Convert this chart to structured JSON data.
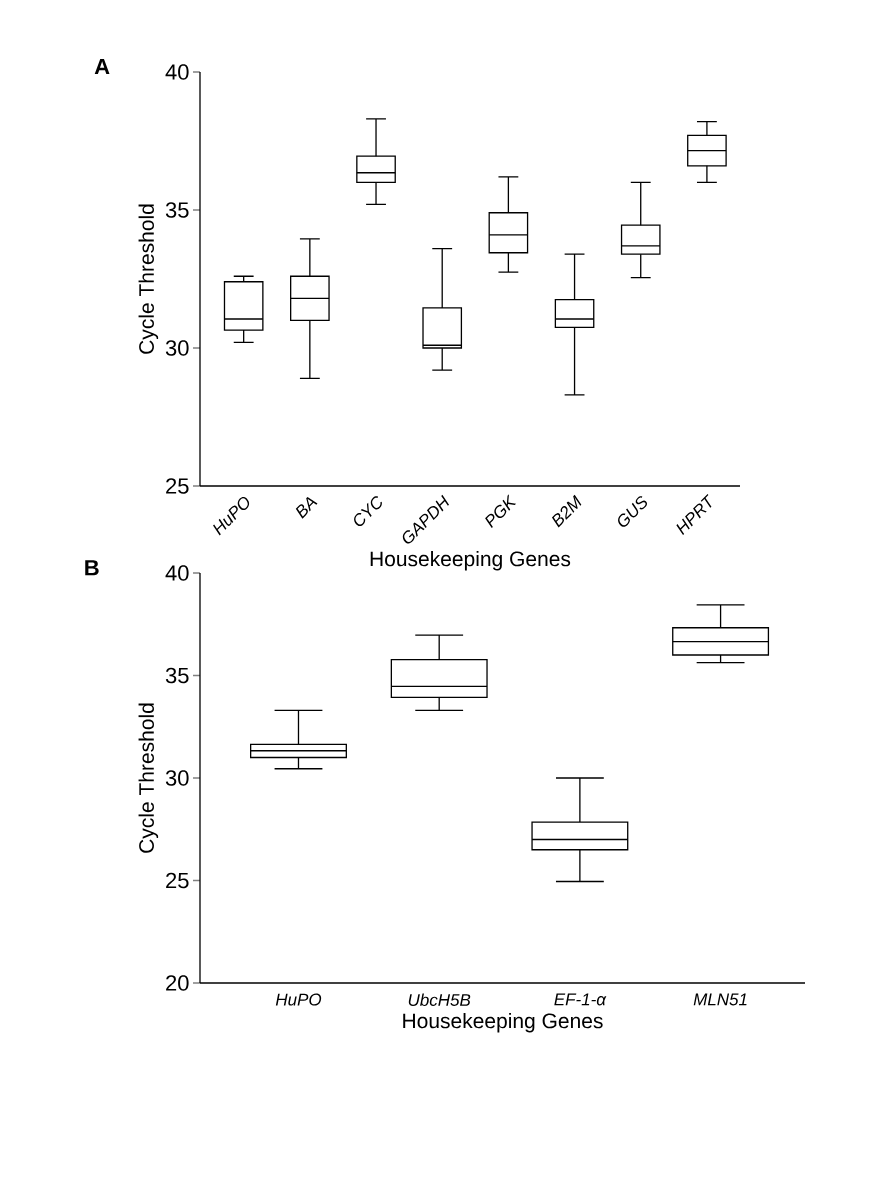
{
  "chart_data": [
    {
      "type": "box",
      "xlabel": "Housekeeping Genes",
      "ylabel": "Cycle Threshold",
      "annotations": [
        "A"
      ],
      "categories": [
        "HuPO",
        "BA",
        "CYC",
        "GAPDH",
        "PGK",
        "B2M",
        "GUS",
        "HPRT"
      ],
      "color": "#000000",
      "ylim": [
        25,
        40
      ],
      "yticks": [
        25,
        30,
        35,
        40
      ],
      "boxes": [
        {
          "low": 30.2,
          "q1": 30.65,
          "median": 31.05,
          "q3": 32.4,
          "high": 32.6
        },
        {
          "low": 28.9,
          "q1": 31.0,
          "median": 31.8,
          "q3": 32.6,
          "high": 33.95
        },
        {
          "low": 35.2,
          "q1": 36.0,
          "median": 36.35,
          "q3": 36.95,
          "high": 38.3
        },
        {
          "low": 29.2,
          "q1": 30.0,
          "median": 30.1,
          "q3": 31.45,
          "high": 33.6
        },
        {
          "low": 32.75,
          "q1": 33.45,
          "median": 34.1,
          "q3": 34.9,
          "high": 36.2
        },
        {
          "low": 28.3,
          "q1": 30.75,
          "median": 31.05,
          "q3": 31.75,
          "high": 33.4
        },
        {
          "low": 32.55,
          "q1": 33.4,
          "median": 33.7,
          "q3": 34.45,
          "high": 36.0
        },
        {
          "low": 36.0,
          "q1": 36.6,
          "median": 37.15,
          "q3": 37.7,
          "high": 38.2
        }
      ]
    },
    {
      "type": "box",
      "xlabel": "Housekeeping Genes",
      "ylabel": "Cycle Threshold",
      "annotations": [
        "B"
      ],
      "categories": [
        "HuPO",
        "UbcH5B",
        "EF-1-α",
        "MLN51"
      ],
      "color": "#000000",
      "ylim": [
        20,
        40
      ],
      "yticks": [
        20,
        25,
        30,
        35,
        40
      ],
      "boxes": [
        {
          "low": 30.45,
          "q1": 31.0,
          "median": 31.33,
          "q3": 31.64,
          "high": 33.3
        },
        {
          "low": 33.3,
          "q1": 33.93,
          "median": 34.47,
          "q3": 35.77,
          "high": 36.97
        },
        {
          "low": 24.95,
          "q1": 26.5,
          "median": 27.0,
          "q3": 27.85,
          "high": 30.0
        },
        {
          "low": 35.63,
          "q1": 36.0,
          "median": 36.65,
          "q3": 37.33,
          "high": 38.44
        }
      ]
    }
  ]
}
